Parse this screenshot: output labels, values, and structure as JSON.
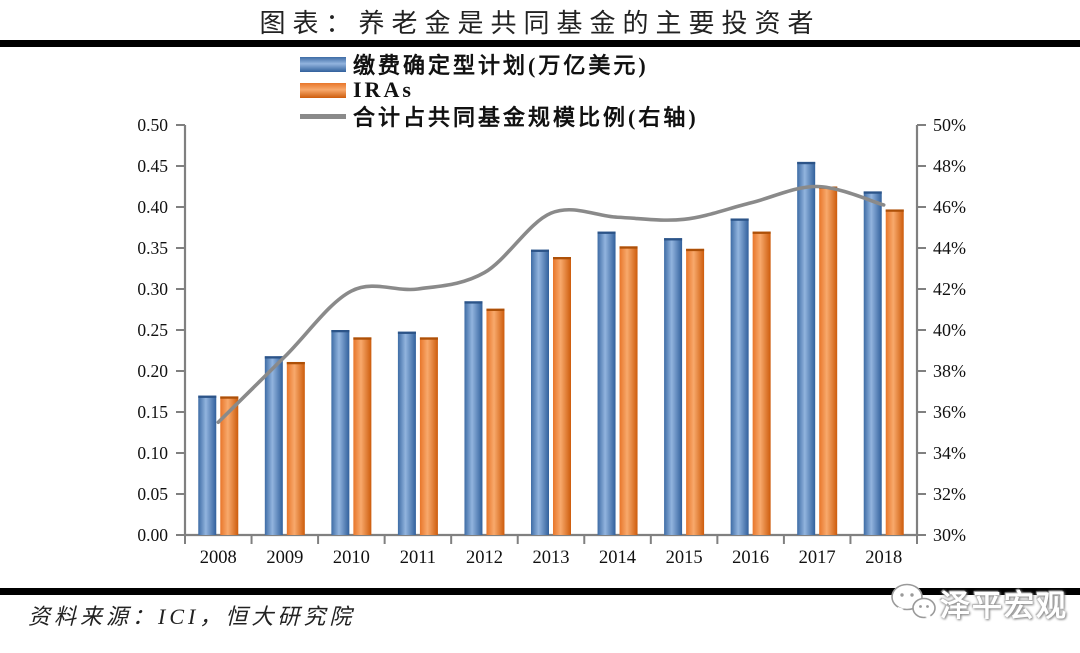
{
  "title": "图表：养老金是共同基金的主要投资者",
  "source": "资料来源：ICI，恒大研究院",
  "watermark": "泽平宏观",
  "colors": {
    "axis": "#808080",
    "line": "#8a8a8a",
    "rule": "#000000",
    "blue_edge": "#3e6ca5",
    "blue_light": "#92b4de",
    "blue_dark": "#31609c",
    "blue_cap": "#2c5488",
    "orange_edge": "#e8762a",
    "orange_light": "#f8a96c",
    "orange_dark": "#cd5c0c",
    "orange_cap": "#ad5008"
  },
  "legend": [
    {
      "swatch": "blue-bar"
    },
    {
      "swatch": "orange-bar"
    },
    {
      "swatch": "gray-line"
    }
  ],
  "chart_data": {
    "type": "bar+line",
    "title": "图表：养老金是共同基金的主要投资者",
    "categories": [
      "2008",
      "2009",
      "2010",
      "2011",
      "2012",
      "2013",
      "2014",
      "2015",
      "2016",
      "2017",
      "2018"
    ],
    "series": [
      {
        "name": "缴费确定型计划(万亿美元)",
        "type": "bar",
        "axis": "left",
        "values": [
          0.17,
          0.218,
          0.25,
          0.248,
          0.285,
          0.348,
          0.37,
          0.362,
          0.386,
          0.455,
          0.419
        ]
      },
      {
        "name": "IRAs",
        "type": "bar",
        "axis": "left",
        "values": [
          0.169,
          0.211,
          0.241,
          0.241,
          0.276,
          0.339,
          0.352,
          0.349,
          0.37,
          0.425,
          0.397
        ]
      },
      {
        "name": "合计占共同基金规模比例(右轴)",
        "type": "line",
        "axis": "right",
        "values": [
          35.5,
          38.7,
          41.9,
          42.0,
          42.8,
          45.7,
          45.5,
          45.4,
          46.2,
          47.0,
          46.1
        ]
      }
    ],
    "left_axis": {
      "min": 0.0,
      "max": 0.5,
      "step": 0.05,
      "decimals": 2
    },
    "right_axis": {
      "min": 30,
      "max": 50,
      "step": 2,
      "suffix": "%"
    },
    "grid": false,
    "legend_position": "top-center",
    "line_smoothed": true
  }
}
